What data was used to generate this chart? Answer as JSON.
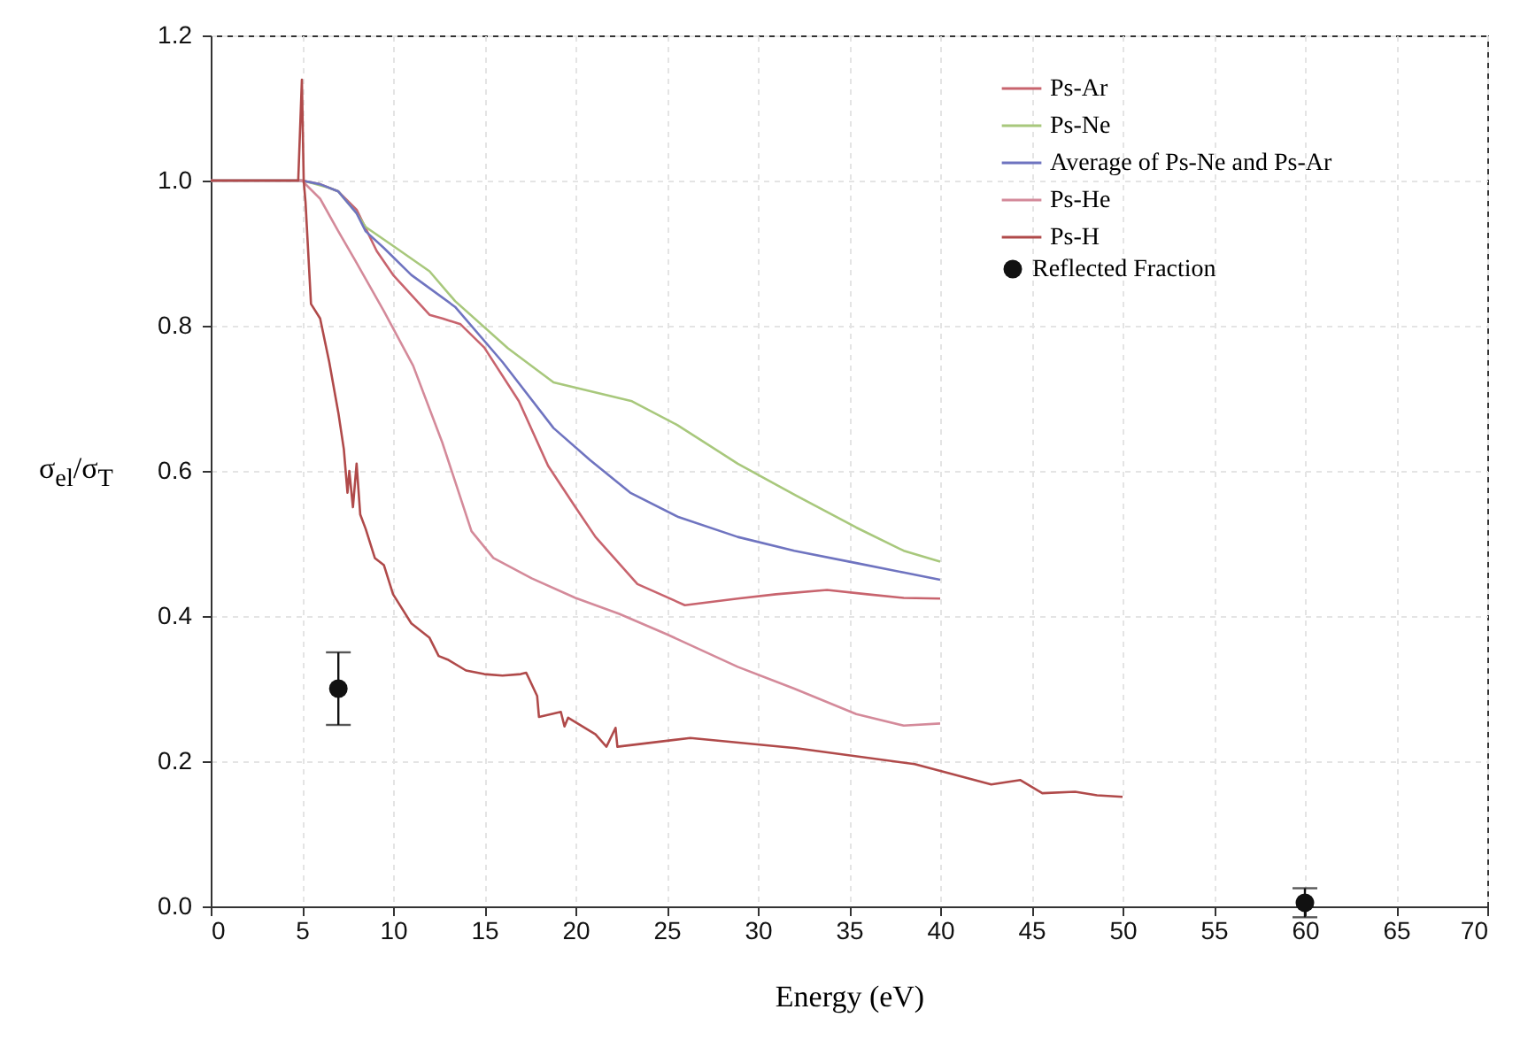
{
  "chart_data": {
    "type": "line",
    "xlabel": "Energy (eV)",
    "ylabel": "σ$_{el}$/σ$_{T}$",
    "xlim": [
      0,
      70
    ],
    "xticks": [
      0,
      5,
      10,
      15,
      20,
      25,
      30,
      35,
      40,
      45,
      50,
      55,
      60,
      65,
      70
    ],
    "ylim": [
      0,
      1.2
    ],
    "yticks": [
      {
        "value": 0,
        "label": "0.0"
      },
      {
        "value": 0.2,
        "label": "0.2"
      },
      {
        "value": 0.4,
        "label": "0.4"
      },
      {
        "value": 0.6,
        "label": "0.6"
      },
      {
        "value": 0.8,
        "label": "0.8"
      },
      {
        "value": 1,
        "label": "1.0"
      },
      {
        "value": 1.2,
        "label": "1.2"
      }
    ],
    "grid": true,
    "legend": "top right",
    "marker": "none",
    "line_style": "solid",
    "series": [
      {
        "name": "Ps-Ar",
        "color": "#c8646e",
        "x": [
          0,
          3,
          5,
          6,
          7,
          8,
          9.1,
          10,
          12,
          12.7,
          13.7,
          15,
          16.9,
          18.5,
          20,
          21.1,
          23.4,
          26,
          28.9,
          31,
          33.8,
          36,
          38,
          40
        ],
        "values": [
          1,
          1,
          1,
          0.995,
          0.985,
          0.96,
          0.903,
          0.87,
          0.815,
          0.81,
          0.802,
          0.77,
          0.696,
          0.607,
          0.55,
          0.509,
          0.444,
          0.415,
          0.424,
          0.43,
          0.436,
          0.43,
          0.425,
          0.424
        ]
      },
      {
        "name": "Ps-Ne",
        "color": "#a8c87c",
        "x": [
          0,
          3,
          5,
          5.5,
          6.5,
          7,
          7.5,
          8,
          8.5,
          10,
          12,
          13.4,
          16.3,
          18.8,
          23.1,
          25.6,
          28.9,
          32.1,
          35.4,
          38,
          40
        ],
        "values": [
          1,
          1,
          1,
          0.997,
          0.99,
          0.985,
          0.97,
          0.955,
          0.936,
          0.91,
          0.875,
          0.834,
          0.769,
          0.722,
          0.696,
          0.663,
          0.61,
          0.566,
          0.522,
          0.49,
          0.475
        ]
      },
      {
        "name": "Average of Ps-Ne and Ps-Ar",
        "color": "#6f74c0",
        "x": [
          0,
          3,
          5,
          6,
          7,
          7.5,
          8,
          8.5,
          9.5,
          11,
          13.4,
          16,
          18.8,
          20.8,
          23,
          25.6,
          28.9,
          32,
          35.4,
          38,
          40
        ],
        "values": [
          1,
          1,
          1,
          0.995,
          0.985,
          0.97,
          0.955,
          0.93,
          0.907,
          0.87,
          0.826,
          0.75,
          0.659,
          0.615,
          0.57,
          0.537,
          0.509,
          0.49,
          0.473,
          0.46,
          0.45
        ]
      },
      {
        "name": "Ps-He",
        "color": "#d48a9a",
        "x": [
          0,
          3,
          5,
          6,
          7,
          7.9,
          9.5,
          11.1,
          12.7,
          14.3,
          15.5,
          17.6,
          20,
          22.4,
          25,
          28.9,
          32,
          35.4,
          38,
          40
        ],
        "values": [
          1,
          1,
          1,
          0.975,
          0.93,
          0.891,
          0.82,
          0.745,
          0.639,
          0.517,
          0.48,
          0.452,
          0.425,
          0.403,
          0.375,
          0.33,
          0.3,
          0.265,
          0.249,
          0.252
        ]
      },
      {
        "name": "Ps-H",
        "color": "#b04a4a",
        "x": [
          0,
          3,
          4.8,
          5,
          5.1,
          5.2,
          5.5,
          6,
          6.5,
          7,
          7.3,
          7.5,
          7.6,
          7.8,
          8,
          8.2,
          8.5,
          9,
          9.5,
          10,
          11,
          12,
          12.5,
          13,
          14,
          15,
          16,
          17,
          17.3,
          17.9,
          18,
          19.2,
          19.4,
          19.6,
          21.1,
          21.7,
          22.2,
          22.3,
          26.3,
          32.1,
          38.6,
          42.8,
          44.4,
          45.6,
          47.4,
          48.6,
          50
        ],
        "values": [
          1,
          1,
          1,
          1.139,
          1.0,
          0.97,
          0.83,
          0.81,
          0.75,
          0.68,
          0.63,
          0.57,
          0.6,
          0.55,
          0.61,
          0.54,
          0.52,
          0.48,
          0.47,
          0.43,
          0.39,
          0.37,
          0.345,
          0.34,
          0.325,
          0.32,
          0.318,
          0.32,
          0.322,
          0.29,
          0.261,
          0.268,
          0.248,
          0.26,
          0.237,
          0.22,
          0.246,
          0.22,
          0.232,
          0.218,
          0.196,
          0.168,
          0.174,
          0.156,
          0.158,
          0.153,
          0.151
        ]
      },
      {
        "name": "Reflected Fraction",
        "type": "scatter",
        "color": "#111111",
        "marker": "circle",
        "x": [
          7,
          60
        ],
        "values": [
          0.3,
          0.005
        ],
        "errors": [
          0.05,
          0.02
        ]
      }
    ]
  }
}
